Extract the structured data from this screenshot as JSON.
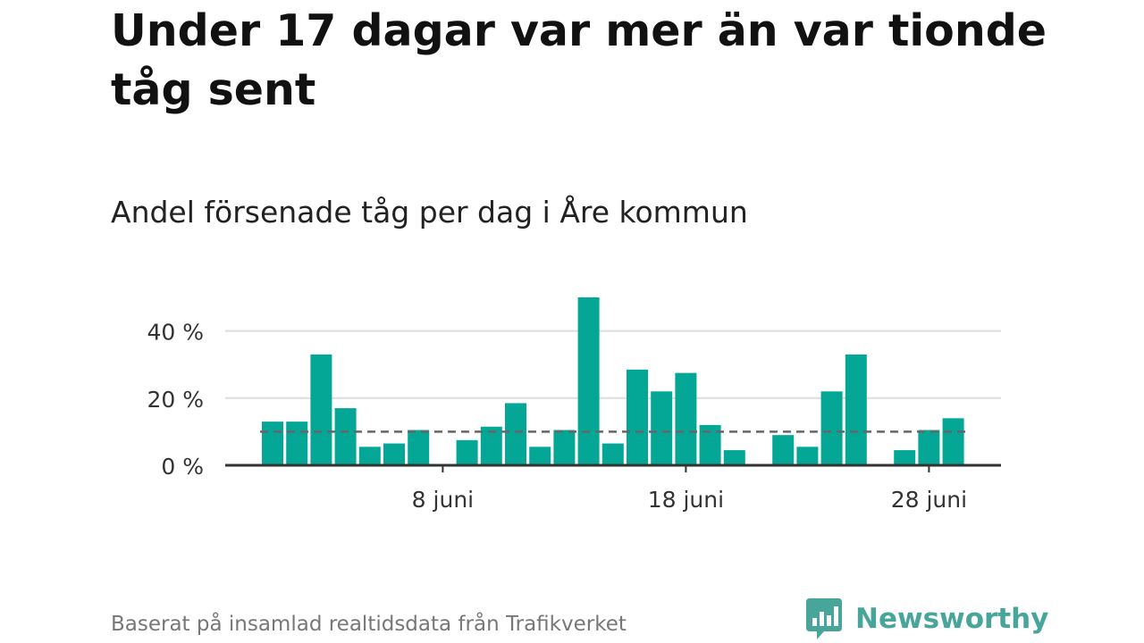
{
  "header": {
    "title": "Under 17 dagar var mer än var tionde tåg sent",
    "subtitle": "Andel försenade tåg per dag i Åre kommun"
  },
  "footer": {
    "source": "Baserat på insamlad realtidsdata från Trafikverket"
  },
  "brand": {
    "name": "Newsworthy",
    "icon": "newsworthy-logo-icon",
    "color": "#48a59a"
  },
  "chart_data": {
    "type": "bar",
    "x": [
      "1 juni",
      "2 juni",
      "3 juni",
      "4 juni",
      "5 juni",
      "6 juni",
      "7 juni",
      "8 juni",
      "9 juni",
      "10 juni",
      "11 juni",
      "12 juni",
      "13 juni",
      "14 juni",
      "15 juni",
      "16 juni",
      "17 juni",
      "18 juni",
      "19 juni",
      "20 juni",
      "21 juni",
      "22 juni",
      "23 juni",
      "24 juni",
      "25 juni",
      "26 juni",
      "27 juni",
      "28 juni",
      "29 juni"
    ],
    "values": [
      13,
      13,
      33,
      17,
      5.5,
      6.5,
      10.5,
      null,
      7.5,
      11.5,
      18.5,
      5.5,
      10.5,
      50,
      6.5,
      28.5,
      22,
      27.5,
      12,
      4.5,
      null,
      9,
      5.5,
      22,
      33,
      null,
      4.5,
      10.5,
      14
    ],
    "x_tick_labels": [
      "8 juni",
      "18 juni",
      "28 juni"
    ],
    "x_tick_positions": [
      "8 juni",
      "18 juni",
      "28 juni"
    ],
    "y_ticks": [
      0,
      20,
      40
    ],
    "y_tick_labels": [
      "0 %",
      "20 %",
      "40 %"
    ],
    "ylim": [
      0,
      50
    ],
    "reference_line": 10,
    "grid": true,
    "colors": {
      "bar": "#04a696",
      "grid": "#dddddd",
      "axis": "#333333",
      "reference": "#666666"
    }
  }
}
